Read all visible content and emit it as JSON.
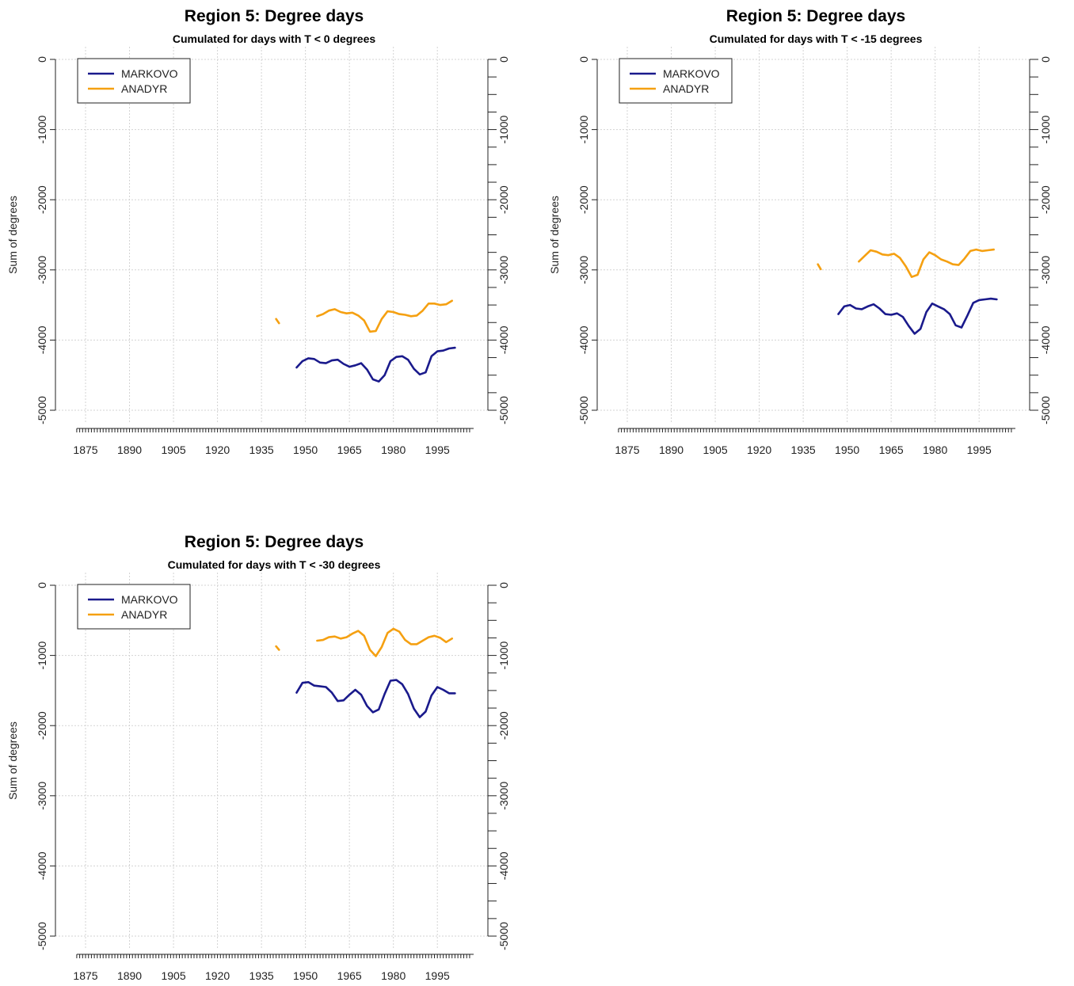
{
  "chart_data": [
    {
      "type": "line",
      "title": "Region 5: Degree days",
      "subtitle": "Cumulated for days with T < 0 degrees",
      "xlabel": "",
      "ylabel": "Sum of degrees",
      "xlim": [
        1870,
        2006
      ],
      "ylim": [
        -5000,
        0
      ],
      "xticks": [
        "1875",
        "1890",
        "1905",
        "1920",
        "1935",
        "1950",
        "1965",
        "1980",
        "1995"
      ],
      "yticks": [
        "0",
        "-1000",
        "-2000",
        "-3000",
        "-4000",
        "-5000"
      ],
      "grid": true,
      "legend": "top-left",
      "series": [
        {
          "name": "MARKOVO",
          "color": "#1a1a8c",
          "segments": [
            [
              [
                1947,
                -4390
              ],
              [
                1949,
                -4300
              ],
              [
                1951,
                -4260
              ],
              [
                1953,
                -4270
              ],
              [
                1955,
                -4320
              ],
              [
                1957,
                -4330
              ],
              [
                1959,
                -4290
              ],
              [
                1961,
                -4280
              ],
              [
                1963,
                -4340
              ],
              [
                1965,
                -4380
              ],
              [
                1967,
                -4360
              ],
              [
                1969,
                -4330
              ],
              [
                1971,
                -4420
              ],
              [
                1973,
                -4560
              ],
              [
                1975,
                -4590
              ],
              [
                1977,
                -4500
              ],
              [
                1979,
                -4300
              ],
              [
                1981,
                -4240
              ],
              [
                1983,
                -4230
              ],
              [
                1985,
                -4280
              ],
              [
                1987,
                -4410
              ],
              [
                1989,
                -4490
              ],
              [
                1991,
                -4460
              ],
              [
                1993,
                -4230
              ],
              [
                1995,
                -4160
              ],
              [
                1997,
                -4150
              ],
              [
                1999,
                -4120
              ],
              [
                2001,
                -4110
              ]
            ]
          ]
        },
        {
          "name": "ANADYR",
          "color": "#f5a011",
          "segments": [
            [
              [
                1940,
                -3700
              ],
              [
                1941,
                -3760
              ]
            ],
            [
              [
                1954,
                -3660
              ],
              [
                1956,
                -3630
              ],
              [
                1958,
                -3580
              ],
              [
                1960,
                -3560
              ],
              [
                1962,
                -3600
              ],
              [
                1964,
                -3620
              ],
              [
                1966,
                -3610
              ],
              [
                1968,
                -3650
              ],
              [
                1970,
                -3720
              ],
              [
                1972,
                -3880
              ],
              [
                1974,
                -3870
              ],
              [
                1976,
                -3700
              ],
              [
                1978,
                -3590
              ],
              [
                1980,
                -3600
              ],
              [
                1982,
                -3630
              ],
              [
                1984,
                -3640
              ],
              [
                1986,
                -3660
              ],
              [
                1988,
                -3650
              ],
              [
                1990,
                -3580
              ],
              [
                1992,
                -3480
              ],
              [
                1994,
                -3480
              ],
              [
                1996,
                -3500
              ],
              [
                1998,
                -3490
              ],
              [
                2000,
                -3440
              ]
            ]
          ]
        }
      ]
    },
    {
      "type": "line",
      "title": "Region 5: Degree days",
      "subtitle": "Cumulated for days with T < -15 degrees",
      "xlabel": "",
      "ylabel": "Sum of degrees",
      "xlim": [
        1870,
        2006
      ],
      "ylim": [
        -5000,
        0
      ],
      "xticks": [
        "1875",
        "1890",
        "1905",
        "1920",
        "1935",
        "1950",
        "1965",
        "1980",
        "1995"
      ],
      "yticks": [
        "0",
        "-1000",
        "-2000",
        "-3000",
        "-4000",
        "-5000"
      ],
      "grid": true,
      "legend": "top-left",
      "series": [
        {
          "name": "MARKOVO",
          "color": "#1a1a8c",
          "segments": [
            [
              [
                1947,
                -3630
              ],
              [
                1949,
                -3520
              ],
              [
                1951,
                -3500
              ],
              [
                1953,
                -3550
              ],
              [
                1955,
                -3560
              ],
              [
                1957,
                -3520
              ],
              [
                1959,
                -3490
              ],
              [
                1961,
                -3550
              ],
              [
                1963,
                -3630
              ],
              [
                1965,
                -3640
              ],
              [
                1967,
                -3620
              ],
              [
                1969,
                -3670
              ],
              [
                1971,
                -3800
              ],
              [
                1973,
                -3910
              ],
              [
                1975,
                -3840
              ],
              [
                1977,
                -3600
              ],
              [
                1979,
                -3480
              ],
              [
                1981,
                -3520
              ],
              [
                1983,
                -3560
              ],
              [
                1985,
                -3630
              ],
              [
                1987,
                -3790
              ],
              [
                1989,
                -3820
              ],
              [
                1991,
                -3650
              ],
              [
                1993,
                -3470
              ],
              [
                1995,
                -3430
              ],
              [
                1997,
                -3420
              ],
              [
                1999,
                -3410
              ],
              [
                2001,
                -3420
              ]
            ]
          ]
        },
        {
          "name": "ANADYR",
          "color": "#f5a011",
          "segments": [
            [
              [
                1940,
                -2920
              ],
              [
                1941,
                -2990
              ]
            ],
            [
              [
                1954,
                -2880
              ],
              [
                1956,
                -2800
              ],
              [
                1958,
                -2720
              ],
              [
                1960,
                -2740
              ],
              [
                1962,
                -2780
              ],
              [
                1964,
                -2790
              ],
              [
                1966,
                -2770
              ],
              [
                1968,
                -2830
              ],
              [
                1970,
                -2950
              ],
              [
                1972,
                -3100
              ],
              [
                1974,
                -3070
              ],
              [
                1976,
                -2850
              ],
              [
                1978,
                -2750
              ],
              [
                1980,
                -2790
              ],
              [
                1982,
                -2850
              ],
              [
                1984,
                -2880
              ],
              [
                1986,
                -2920
              ],
              [
                1988,
                -2930
              ],
              [
                1990,
                -2840
              ],
              [
                1992,
                -2730
              ],
              [
                1994,
                -2710
              ],
              [
                1996,
                -2730
              ],
              [
                1998,
                -2720
              ],
              [
                2000,
                -2710
              ]
            ]
          ]
        }
      ]
    },
    {
      "type": "line",
      "title": "Region 5: Degree days",
      "subtitle": "Cumulated for days with T < -30 degrees",
      "xlabel": "",
      "ylabel": "Sum of degrees",
      "xlim": [
        1870,
        2006
      ],
      "ylim": [
        -5000,
        0
      ],
      "xticks": [
        "1875",
        "1890",
        "1905",
        "1920",
        "1935",
        "1950",
        "1965",
        "1980",
        "1995"
      ],
      "yticks": [
        "0",
        "-1000",
        "-2000",
        "-3000",
        "-4000",
        "-5000"
      ],
      "grid": true,
      "legend": "top-left",
      "series": [
        {
          "name": "MARKOVO",
          "color": "#1a1a8c",
          "segments": [
            [
              [
                1947,
                -1530
              ],
              [
                1949,
                -1390
              ],
              [
                1951,
                -1380
              ],
              [
                1953,
                -1430
              ],
              [
                1955,
                -1440
              ],
              [
                1957,
                -1450
              ],
              [
                1959,
                -1530
              ],
              [
                1961,
                -1650
              ],
              [
                1963,
                -1640
              ],
              [
                1965,
                -1560
              ],
              [
                1967,
                -1490
              ],
              [
                1969,
                -1560
              ],
              [
                1971,
                -1720
              ],
              [
                1973,
                -1810
              ],
              [
                1975,
                -1770
              ],
              [
                1977,
                -1550
              ],
              [
                1979,
                -1360
              ],
              [
                1981,
                -1350
              ],
              [
                1983,
                -1410
              ],
              [
                1985,
                -1550
              ],
              [
                1987,
                -1760
              ],
              [
                1989,
                -1880
              ],
              [
                1991,
                -1800
              ],
              [
                1993,
                -1570
              ],
              [
                1995,
                -1450
              ],
              [
                1997,
                -1490
              ],
              [
                1999,
                -1540
              ],
              [
                2001,
                -1540
              ]
            ]
          ]
        },
        {
          "name": "ANADYR",
          "color": "#f5a011",
          "segments": [
            [
              [
                1940,
                -870
              ],
              [
                1941,
                -920
              ]
            ],
            [
              [
                1954,
                -790
              ],
              [
                1956,
                -780
              ],
              [
                1958,
                -740
              ],
              [
                1960,
                -730
              ],
              [
                1962,
                -760
              ],
              [
                1964,
                -740
              ],
              [
                1966,
                -690
              ],
              [
                1968,
                -650
              ],
              [
                1970,
                -720
              ],
              [
                1972,
                -920
              ],
              [
                1974,
                -1010
              ],
              [
                1976,
                -880
              ],
              [
                1978,
                -680
              ],
              [
                1980,
                -620
              ],
              [
                1982,
                -660
              ],
              [
                1984,
                -780
              ],
              [
                1986,
                -840
              ],
              [
                1988,
                -840
              ],
              [
                1990,
                -790
              ],
              [
                1992,
                -740
              ],
              [
                1994,
                -720
              ],
              [
                1996,
                -750
              ],
              [
                1998,
                -810
              ],
              [
                2000,
                -760
              ]
            ]
          ]
        }
      ]
    }
  ]
}
